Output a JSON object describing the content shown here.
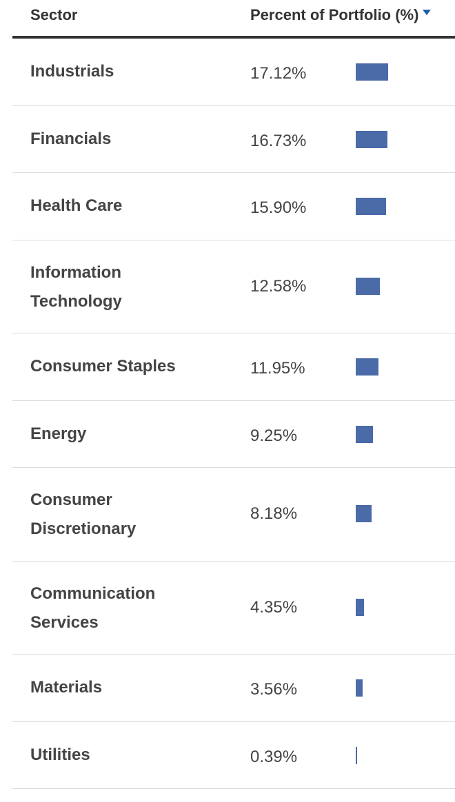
{
  "table": {
    "header": {
      "sector_label": "Sector",
      "percent_label": "Percent of Portfolio (%)",
      "sort_icon": "sort-descending-icon"
    },
    "max_percent": 17.12,
    "bar_color": "#4a6aa8",
    "rows": [
      {
        "sector": "Industrials",
        "percent_text": "17.12%",
        "percent": 17.12
      },
      {
        "sector": "Financials",
        "percent_text": "16.73%",
        "percent": 16.73
      },
      {
        "sector": "Health Care",
        "percent_text": "15.90%",
        "percent": 15.9
      },
      {
        "sector": "Information Technology",
        "percent_text": "12.58%",
        "percent": 12.58
      },
      {
        "sector": "Consumer Staples",
        "percent_text": "11.95%",
        "percent": 11.95
      },
      {
        "sector": "Energy",
        "percent_text": "9.25%",
        "percent": 9.25
      },
      {
        "sector": "Consumer Discretionary",
        "percent_text": "8.18%",
        "percent": 8.18
      },
      {
        "sector": "Communication Services",
        "percent_text": "4.35%",
        "percent": 4.35
      },
      {
        "sector": "Materials",
        "percent_text": "3.56%",
        "percent": 3.56
      },
      {
        "sector": "Utilities",
        "percent_text": "0.39%",
        "percent": 0.39
      }
    ]
  }
}
